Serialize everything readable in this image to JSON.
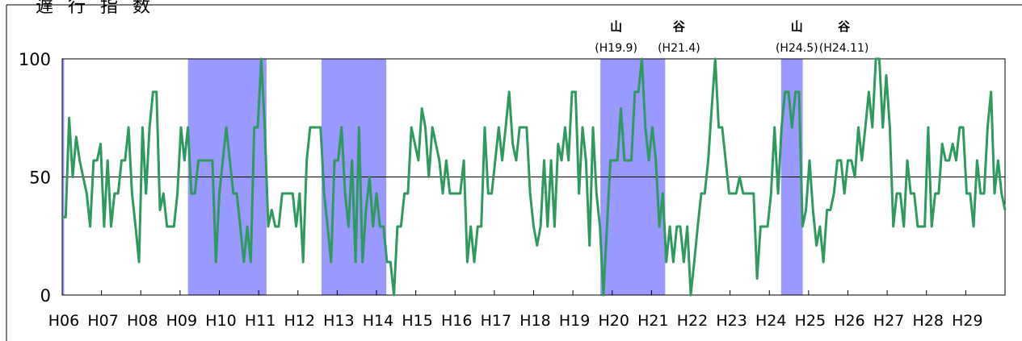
{
  "chart_data": {
    "type": "line",
    "title": "",
    "partial_title": "遅行指数",
    "ylim": [
      0,
      100
    ],
    "y_ticks": [
      0,
      50,
      100
    ],
    "x_ticks": [
      "H06",
      "H07",
      "H08",
      "H09",
      "H10",
      "H11",
      "H12",
      "H13",
      "H14",
      "H15",
      "H16",
      "H17",
      "H18",
      "H19",
      "H20",
      "H21",
      "H22",
      "H23",
      "H24",
      "H25",
      "H26",
      "H27",
      "H28",
      "H29"
    ],
    "x_range_index": [
      0,
      24
    ],
    "reference_line": 50,
    "recession_bands": [
      {
        "start": 0.0,
        "end": 0.05
      },
      {
        "start": 3.2,
        "end": 5.2
      },
      {
        "start": 6.6,
        "end": 8.25
      },
      {
        "start": 13.7,
        "end": 15.35
      },
      {
        "start": 18.3,
        "end": 18.85
      }
    ],
    "annotations": [
      {
        "mark": "山",
        "label": "(H19.9)",
        "at": 14.1
      },
      {
        "mark": "谷",
        "label": "(H21.4)",
        "at": 15.7
      },
      {
        "mark": "山",
        "label": "(H24.5)",
        "at": 18.7
      },
      {
        "mark": "谷",
        "label": "(H24.11)",
        "at": 19.9
      }
    ],
    "series": [
      {
        "values": [
          33,
          33,
          75,
          50,
          67,
          57,
          50,
          43,
          29,
          57,
          57,
          64,
          29,
          57,
          29,
          43,
          43,
          57,
          57,
          71,
          43,
          29,
          14,
          71,
          43,
          71,
          86,
          86,
          36,
          43,
          29,
          29,
          29,
          43,
          71,
          57,
          71,
          43,
          43,
          57,
          57,
          57,
          57,
          57,
          14,
          43,
          57,
          71,
          57,
          43,
          43,
          29,
          14,
          29,
          14,
          71,
          71,
          100,
          71,
          29,
          36,
          29,
          29,
          43,
          43,
          43,
          43,
          29,
          43,
          14,
          57,
          71,
          71,
          71,
          71,
          43,
          29,
          14,
          57,
          57,
          71,
          43,
          29,
          57,
          14,
          71,
          14,
          36,
          50,
          29,
          43,
          29,
          29,
          14,
          14,
          0,
          29,
          29,
          43,
          43,
          71,
          64,
          57,
          79,
          71,
          50,
          71,
          64,
          57,
          43,
          57,
          43,
          43,
          43,
          43,
          57,
          14,
          29,
          14,
          29,
          29,
          71,
          43,
          43,
          57,
          71,
          57,
          71,
          86,
          64,
          57,
          71,
          71,
          71,
          43,
          29,
          21,
          29,
          57,
          29,
          57,
          29,
          64,
          57,
          71,
          57,
          86,
          86,
          43,
          71,
          57,
          21,
          71,
          43,
          29,
          0,
          29,
          57,
          57,
          57,
          79,
          57,
          57,
          57,
          86,
          86,
          100,
          71,
          57,
          71,
          57,
          29,
          43,
          14,
          29,
          14,
          29,
          29,
          14,
          29,
          0,
          14,
          29,
          43,
          43,
          57,
          79,
          100,
          71,
          71,
          57,
          43,
          43,
          43,
          50,
          43,
          43,
          43,
          43,
          7,
          29,
          29,
          29,
          43,
          71,
          43,
          71,
          86,
          86,
          71,
          86,
          86,
          29,
          36,
          57,
          36,
          21,
          29,
          14,
          36,
          36,
          43,
          57,
          57,
          43,
          57,
          57,
          50,
          71,
          57,
          71,
          86,
          71,
          100,
          100,
          71,
          93,
          71,
          29,
          43,
          43,
          29,
          57,
          43,
          43,
          29,
          29,
          29,
          71,
          29,
          43,
          43,
          64,
          57,
          57,
          64,
          57,
          71,
          71,
          43,
          43,
          29,
          57,
          43,
          43,
          71,
          86,
          43,
          57,
          43,
          36
        ]
      }
    ]
  }
}
